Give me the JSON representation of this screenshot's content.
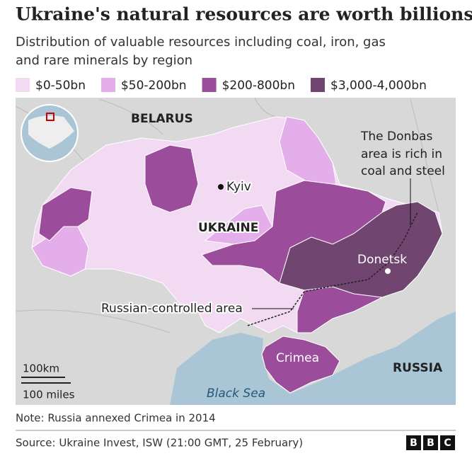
{
  "header": {
    "title": "Ukraine's natural resources are worth billions",
    "subtitle": [
      "Distribution of valuable resources including coal, iron, gas",
      "and rare minerals by region"
    ]
  },
  "legend": [
    {
      "label": "$0-50bn",
      "color": "#f3daf3"
    },
    {
      "label": "$50-200bn",
      "color": "#e3aeea"
    },
    {
      "label": "$200-800bn",
      "color": "#9b4c9b"
    },
    {
      "label": "$3,000-4,000bn",
      "color": "#704570"
    }
  ],
  "map": {
    "labels": {
      "belarus": "BELARUS",
      "kyiv": "Kyiv",
      "ukraine": "UKRAINE",
      "donetsk": "Donetsk",
      "crimea": "Crimea",
      "russia": "RUSSIA",
      "sea": "Black Sea",
      "controlled": "Russian-controlled area"
    },
    "annotation": [
      "The Donbas",
      "area is rich in",
      "coal and steel"
    ],
    "scale": {
      "km": "100km",
      "miles": "100 miles"
    }
  },
  "note": "Note: Russia annexed Crimea in 2014",
  "source": "Source: Ukraine Invest, ISW (21:00 GMT, 25 February)",
  "logo": [
    "B",
    "B",
    "C"
  ]
}
